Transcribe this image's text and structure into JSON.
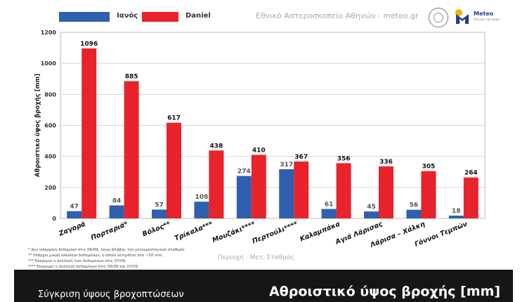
{
  "legend": [
    {
      "name": "Ιανός",
      "color": "#2f5faf"
    },
    {
      "name": "Daniel",
      "color": "#e8232b"
    }
  ],
  "source_label": "Εθνικό Αστεροσκοπείο Αθηνών - meteo.gr",
  "logo": {
    "name": "Meteo",
    "tagline": "Όλα για τον καιρό",
    "icon": "meteo-logo-icon",
    "seal_icon": "observatory-seal-icon"
  },
  "footnotes": [
    "* Δεν υπάρχουν δεδομένα στις 06/09, λόγω βλάβης του μετεωρολογικού σταθμού.",
    "** Υπάρχει μικρή απώλεια δεδομένων, η οποία εκτιμάται στο ~50 mm.",
    "*** Εκκρεμεί η συλλογή των δεδομένων στις 07/09.",
    "**** Εκκρεμεί η συλλογή δεδομένων στις 06/09 και 07/09."
  ],
  "banner": {
    "left": "Σύγκριση ύψους βροχοπτώσεων",
    "right": "Αθροιστικό ύψος βροχής [mm]"
  },
  "chart_data": {
    "type": "bar",
    "categories": [
      "Ζαγορά",
      "Πορταριά*",
      "Βόλος**",
      "Τρίκαλα***",
      "Μουζάκι****",
      "Περτούλι****",
      "Καλαμπάκα",
      "Αγιά Λάρισας",
      "Λάρισα – Χάλκη",
      "Γόννοι Τεμπών"
    ],
    "series": [
      {
        "name": "Ιανός",
        "values": [
          47,
          84,
          57,
          108,
          274,
          317,
          61,
          45,
          56,
          18
        ],
        "color": "#2f5faf"
      },
      {
        "name": "Daniel",
        "values": [
          1096,
          885,
          617,
          438,
          410,
          367,
          356,
          336,
          305,
          264
        ],
        "color": "#e8232b"
      }
    ],
    "xlabel": "Περιοχή - Μετ. Σταθμός",
    "ylabel": "Αθροιστικό ύψος βροχής [mm]",
    "ylim": [
      0,
      1200
    ],
    "yticks": [
      0,
      200,
      400,
      600,
      800,
      1000,
      1200
    ],
    "grid": true,
    "legend_position": "top-left"
  }
}
